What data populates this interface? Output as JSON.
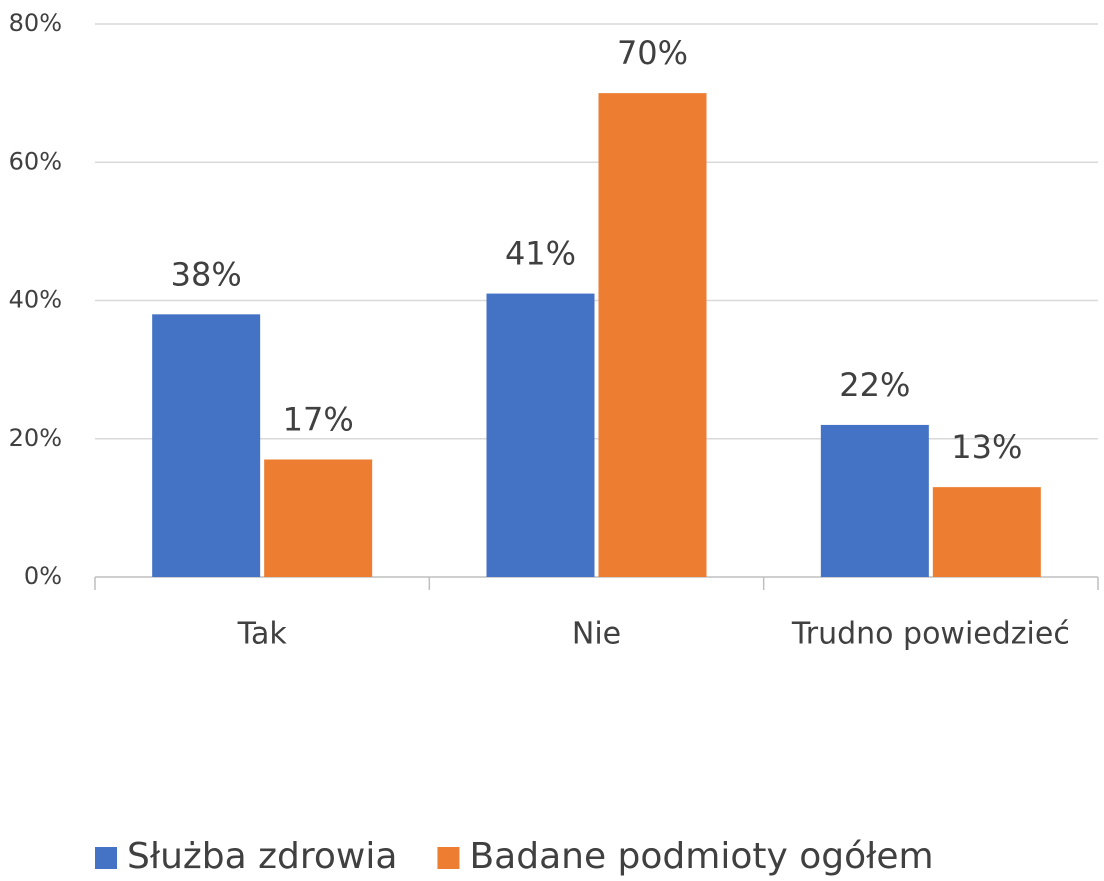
{
  "chart_data": {
    "type": "bar",
    "categories": [
      "Tak",
      "Nie",
      "Trudno powiedzieć"
    ],
    "series": [
      {
        "name": "Służba zdrowia",
        "color": "#4472c4",
        "values": [
          38,
          41,
          22
        ],
        "value_labels": [
          "38%",
          "41%",
          "22%"
        ]
      },
      {
        "name": "Badane podmioty ogółem",
        "color": "#ed7d31",
        "values": [
          17,
          70,
          13
        ],
        "value_labels": [
          "17%",
          "70%",
          "13%"
        ]
      }
    ],
    "ylim": [
      0,
      80
    ],
    "yticks": [
      {
        "value": 0,
        "label": "0%"
      },
      {
        "value": 20,
        "label": "20%"
      },
      {
        "value": 40,
        "label": "40%"
      },
      {
        "value": 60,
        "label": "60%"
      },
      {
        "value": 80,
        "label": "80%"
      }
    ],
    "grid": true,
    "legend": "bottom"
  }
}
